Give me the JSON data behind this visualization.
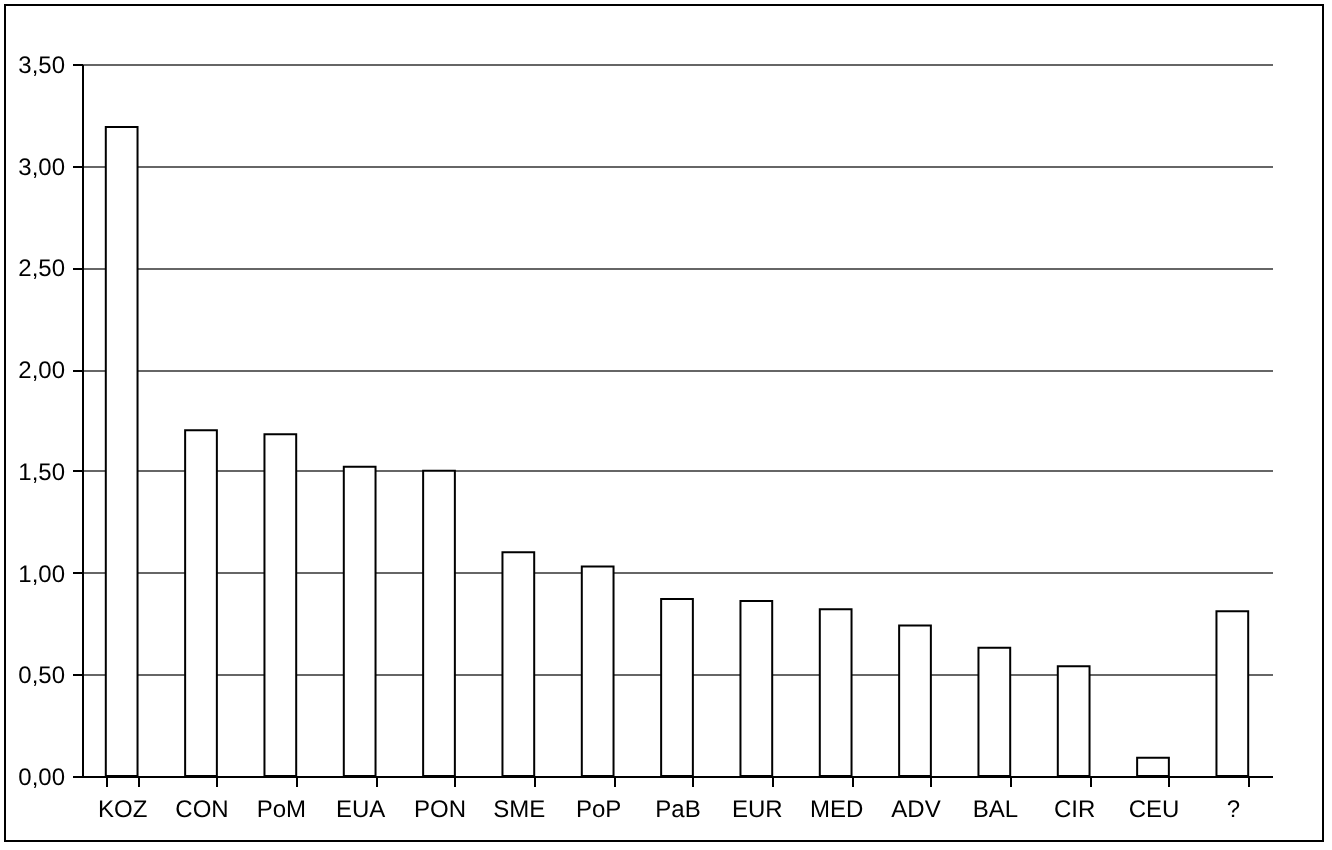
{
  "chart_data": {
    "type": "bar",
    "categories": [
      "KOZ",
      "CON",
      "PoM",
      "EUA",
      "PON",
      "SME",
      "PoP",
      "PaB",
      "EUR",
      "MED",
      "ADV",
      "BAL",
      "CIR",
      "CEU",
      "?"
    ],
    "values": [
      3.19,
      1.7,
      1.68,
      1.52,
      1.5,
      1.1,
      1.03,
      0.87,
      0.86,
      0.82,
      0.74,
      0.63,
      0.54,
      0.09,
      0.81
    ],
    "color": "#ffffff",
    "ylim": [
      0,
      3.5
    ],
    "yticks": [
      {
        "value": 0,
        "label": "0,00"
      },
      {
        "value": 0.5,
        "label": "0,50"
      },
      {
        "value": 1,
        "label": "1,00"
      },
      {
        "value": 1.5,
        "label": "1,50"
      },
      {
        "value": 2,
        "label": "2,00"
      },
      {
        "value": 2.5,
        "label": "2,50"
      },
      {
        "value": 3,
        "label": "3,00"
      },
      {
        "value": 3.5,
        "label": "3,50"
      }
    ],
    "grid": "y"
  }
}
